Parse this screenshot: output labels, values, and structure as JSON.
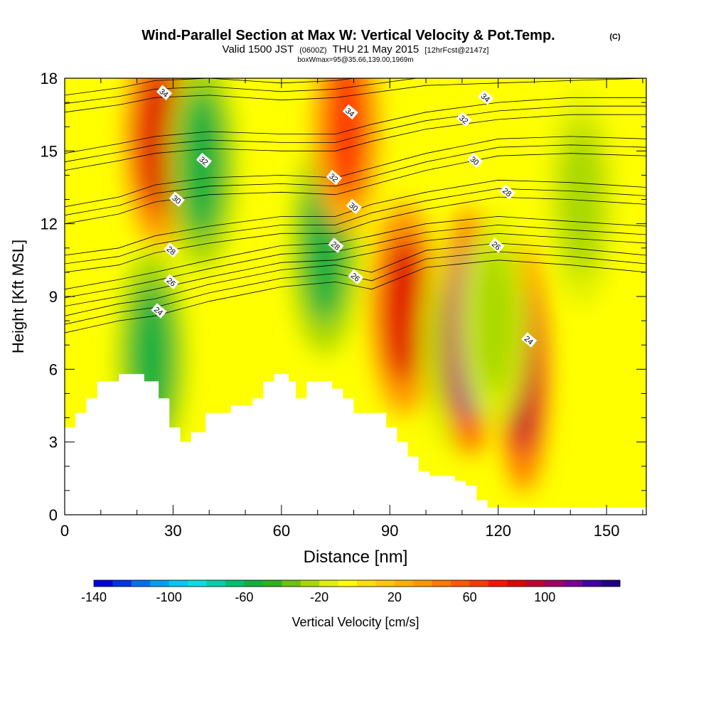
{
  "chart_data": {
    "type": "heatmap",
    "title": "Wind-Parallel Section at Max W: Vertical Velocity & Pot.Temp.",
    "copyright": "(C)",
    "subtitle_valid": "Valid 1500 JST",
    "subtitle_z": "(0600Z)",
    "subtitle_date": "THU 21 May 2015",
    "subtitle_fcst": "[12hrFcst@2147z]",
    "subtitle_box": "boxWmax=95@35.66,139.00,1969m",
    "xlabel": "Distance [nm]",
    "ylabel": "Height [Kft MSL]",
    "xlim": [
      0,
      161
    ],
    "ylim": [
      0,
      18
    ],
    "x_ticks": [
      0,
      30,
      60,
      90,
      120,
      150
    ],
    "y_ticks": [
      0,
      3,
      6,
      9,
      12,
      15,
      18
    ],
    "colorbar": {
      "label": "Vertical Velocity [cm/s]",
      "min": -140,
      "max": 140,
      "step": 10,
      "tick_values": [
        -140,
        -100,
        -60,
        -20,
        20,
        60,
        100
      ],
      "colors": [
        "#0000e0",
        "#0030f0",
        "#0070f0",
        "#00a0f0",
        "#00c8f0",
        "#00e0e0",
        "#00d0a8",
        "#00c070",
        "#10b040",
        "#30b020",
        "#70c010",
        "#a8d800",
        "#e0f000",
        "#ffff00",
        "#ffe000",
        "#ffc800",
        "#ffb000",
        "#ff9800",
        "#ff7800",
        "#ff5800",
        "#ff3800",
        "#ff1000",
        "#e00000",
        "#c00030",
        "#a00060",
        "#780090",
        "#4000a0",
        "#200080"
      ]
    },
    "velocity_features": [
      {
        "x": 26,
        "z": 15.5,
        "w": 80,
        "type": "updraft"
      },
      {
        "x": 38,
        "z": 14.5,
        "w": -60,
        "type": "downdraft"
      },
      {
        "x": 24,
        "z": 6.5,
        "w": -60,
        "type": "downdraft"
      },
      {
        "x": 72,
        "z": 11,
        "w": -60,
        "type": "downdraft"
      },
      {
        "x": 78,
        "z": 16,
        "w": 60,
        "type": "updraft"
      },
      {
        "x": 94,
        "z": 8.5,
        "w": 80,
        "type": "updraft"
      },
      {
        "x": 108,
        "z": 7,
        "w": -40,
        "type": "downdraft"
      },
      {
        "x": 112,
        "z": 7.5,
        "w": 120,
        "type": "updraft"
      },
      {
        "x": 127,
        "z": 6,
        "w": 90,
        "type": "updraft"
      },
      {
        "x": 119,
        "z": 8,
        "w": -30,
        "type": "downdraft"
      },
      {
        "x": 143,
        "z": 13,
        "w": -30,
        "type": "downdraft"
      }
    ],
    "terrain_profile": [
      {
        "x": 0,
        "h": 3.6
      },
      {
        "x": 3,
        "h": 4.2
      },
      {
        "x": 6,
        "h": 4.8
      },
      {
        "x": 9,
        "h": 5.5
      },
      {
        "x": 15,
        "h": 5.8
      },
      {
        "x": 22,
        "h": 5.5
      },
      {
        "x": 26,
        "h": 4.8
      },
      {
        "x": 29,
        "h": 3.6
      },
      {
        "x": 32,
        "h": 3.0
      },
      {
        "x": 35,
        "h": 3.4
      },
      {
        "x": 39,
        "h": 4.2
      },
      {
        "x": 46,
        "h": 4.5
      },
      {
        "x": 52,
        "h": 4.8
      },
      {
        "x": 55,
        "h": 5.5
      },
      {
        "x": 58,
        "h": 5.8
      },
      {
        "x": 62,
        "h": 5.5
      },
      {
        "x": 64,
        "h": 4.8
      },
      {
        "x": 67,
        "h": 5.5
      },
      {
        "x": 74,
        "h": 5.2
      },
      {
        "x": 77,
        "h": 4.8
      },
      {
        "x": 80,
        "h": 4.2
      },
      {
        "x": 89,
        "h": 3.6
      },
      {
        "x": 92,
        "h": 3.0
      },
      {
        "x": 95,
        "h": 2.4
      },
      {
        "x": 98,
        "h": 1.8
      },
      {
        "x": 101,
        "h": 1.6
      },
      {
        "x": 108,
        "h": 1.4
      },
      {
        "x": 111,
        "h": 1.2
      },
      {
        "x": 114,
        "h": 0.6
      },
      {
        "x": 117,
        "h": 0.3
      },
      {
        "x": 161,
        "h": 0.3
      }
    ],
    "isentropes": [
      {
        "label": "24",
        "points": [
          [
            0,
            7.5
          ],
          [
            15,
            8.0
          ],
          [
            25,
            8.2
          ],
          [
            40,
            8.8
          ],
          [
            60,
            9.4
          ],
          [
            75,
            9.6
          ],
          [
            85,
            9.3
          ],
          [
            100,
            10.2
          ],
          [
            120,
            10.5
          ],
          [
            140,
            10.3
          ],
          [
            161,
            10.0
          ]
        ]
      },
      {
        "label": "26",
        "points": [
          [
            0,
            8.6
          ],
          [
            15,
            9.0
          ],
          [
            25,
            9.3
          ],
          [
            40,
            9.8
          ],
          [
            60,
            10.4
          ],
          [
            75,
            10.5
          ],
          [
            85,
            10.8
          ],
          [
            100,
            11.3
          ],
          [
            120,
            11.6
          ],
          [
            140,
            11.4
          ],
          [
            161,
            11.2
          ]
        ]
      },
      {
        "label": "28",
        "points": [
          [
            0,
            10.0
          ],
          [
            15,
            10.3
          ],
          [
            25,
            10.8
          ],
          [
            40,
            11.2
          ],
          [
            60,
            11.6
          ],
          [
            75,
            11.6
          ],
          [
            85,
            12.1
          ],
          [
            100,
            12.6
          ],
          [
            120,
            13.1
          ],
          [
            140,
            13.0
          ],
          [
            161,
            12.8
          ]
        ]
      },
      {
        "label": "30",
        "points": [
          [
            0,
            12.0
          ],
          [
            15,
            12.4
          ],
          [
            25,
            12.9
          ],
          [
            40,
            13.2
          ],
          [
            60,
            13.3
          ],
          [
            75,
            13.2
          ],
          [
            85,
            13.6
          ],
          [
            100,
            14.2
          ],
          [
            120,
            14.8
          ],
          [
            140,
            14.9
          ],
          [
            161,
            14.8
          ]
        ]
      },
      {
        "label": "32",
        "points": [
          [
            0,
            14.2
          ],
          [
            15,
            14.6
          ],
          [
            25,
            14.9
          ],
          [
            40,
            15.1
          ],
          [
            60,
            15.0
          ],
          [
            75,
            15.0
          ],
          [
            85,
            15.4
          ],
          [
            100,
            15.9
          ],
          [
            120,
            16.3
          ],
          [
            140,
            16.5
          ],
          [
            161,
            16.5
          ]
        ]
      },
      {
        "label": "34",
        "points": [
          [
            0,
            16.6
          ],
          [
            15,
            16.9
          ],
          [
            25,
            17.2
          ],
          [
            40,
            17.3
          ],
          [
            60,
            17.1
          ],
          [
            75,
            17.2
          ],
          [
            85,
            17.4
          ],
          [
            100,
            17.7
          ],
          [
            120,
            17.8
          ],
          [
            140,
            17.9
          ],
          [
            161,
            18.0
          ]
        ]
      }
    ],
    "contour_labels": [
      {
        "text": "34",
        "x": 27.5,
        "z": 17.4
      },
      {
        "text": "32",
        "x": 38.5,
        "z": 14.6
      },
      {
        "text": "30",
        "x": 31.0,
        "z": 13.0
      },
      {
        "text": "28",
        "x": 29.5,
        "z": 10.9
      },
      {
        "text": "26",
        "x": 29.5,
        "z": 9.6
      },
      {
        "text": "24",
        "x": 26.0,
        "z": 8.4
      },
      {
        "text": "34",
        "x": 79.0,
        "z": 16.6
      },
      {
        "text": "32",
        "x": 74.5,
        "z": 13.9
      },
      {
        "text": "30",
        "x": 80.0,
        "z": 12.7
      },
      {
        "text": "28",
        "x": 75.0,
        "z": 11.1
      },
      {
        "text": "26",
        "x": 80.5,
        "z": 9.8
      },
      {
        "text": "34",
        "x": 116.5,
        "z": 17.2
      },
      {
        "text": "32",
        "x": 110.5,
        "z": 16.3
      },
      {
        "text": "30",
        "x": 113.5,
        "z": 14.6
      },
      {
        "text": "28",
        "x": 122.5,
        "z": 13.3
      },
      {
        "text": "26",
        "x": 119.5,
        "z": 11.1
      },
      {
        "text": "24",
        "x": 128.5,
        "z": 7.2
      }
    ]
  }
}
